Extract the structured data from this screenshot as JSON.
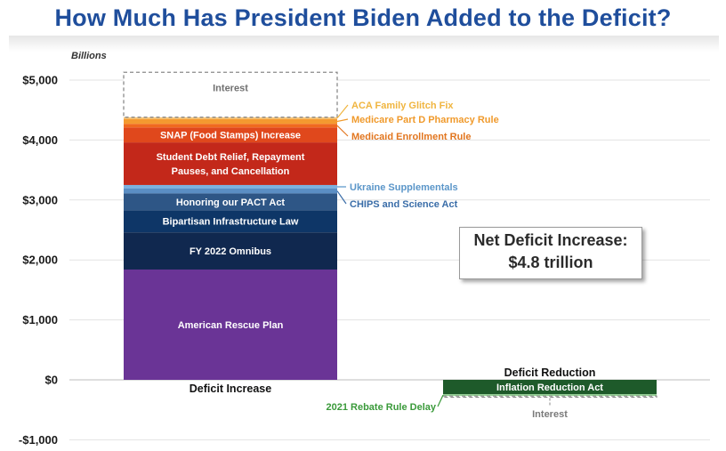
{
  "title": "How Much Has President Biden Added to the Deficit?",
  "callout": {
    "line1": "Net Deficit Increase:",
    "line2": "$4.8 trillion"
  },
  "chart_data": {
    "type": "bar",
    "stacked": true,
    "title": "How Much Has President Biden Added to the Deficit?",
    "ylabel": "Billions",
    "ylim": [
      -1000,
      5000
    ],
    "yticks": [
      -1000,
      0,
      1000,
      2000,
      3000,
      4000,
      5000
    ],
    "ytick_labels": [
      "-$1,000",
      "$0",
      "$1,000",
      "$2,000",
      "$3,000",
      "$4,000",
      "$5,000"
    ],
    "grid": true,
    "categories": [
      "Deficit Increase",
      "Deficit Reduction"
    ],
    "increase": [
      {
        "name": "American Rescue Plan",
        "value": 1840,
        "color": "#6a3496",
        "label_inside": true
      },
      {
        "name": "FY 2022 Omnibus",
        "value": 620,
        "color": "#10284f",
        "label_inside": true
      },
      {
        "name": "Bipartisan Infrastructure Law",
        "value": 370,
        "color": "#0e3667",
        "label_inside": true
      },
      {
        "name": "Honoring our PACT Act",
        "value": 280,
        "color": "#2e5686",
        "label_inside": true
      },
      {
        "name": "CHIPS and Science Act",
        "value": 80,
        "color": "#5b8ec4",
        "label_inside": false,
        "label_color": "#3a6da8"
      },
      {
        "name": "Ukraine Supplementals",
        "value": 60,
        "color": "#7db0de",
        "label_inside": false,
        "label_color": "#5b96c9"
      },
      {
        "name": "Student Debt Relief, Repayment Pauses, and Cancellation",
        "value": 710,
        "color": "#c3281a",
        "label_inside": true
      },
      {
        "name": "SNAP (Food Stamps) Increase",
        "value": 250,
        "color": "#e0481c",
        "label_inside": true
      },
      {
        "name": "Medicaid Enrollment Rule",
        "value": 60,
        "color": "#f06a1f",
        "label_inside": false,
        "label_color": "#e2761f"
      },
      {
        "name": "Medicare Part D Pharmacy Rule",
        "value": 80,
        "color": "#f49a30",
        "label_inside": false,
        "label_color": "#f09a2c"
      },
      {
        "name": "ACA Family Glitch Fix",
        "value": 30,
        "color": "#f8c06a",
        "label_inside": false,
        "label_color": "#f0b540"
      },
      {
        "name": "Interest",
        "value": 750,
        "style": "dashed-outline",
        "label_inside": true
      }
    ],
    "reduction": [
      {
        "name": "Inflation Reduction Act",
        "value": -240,
        "color": "#1e5a2a",
        "label_inside": true
      },
      {
        "name": "2021 Rebate Rule Delay",
        "value": -30,
        "color": "#8fcf8f",
        "label_inside": false,
        "label_color": "#3a9a3a"
      },
      {
        "name": "Interest",
        "value": -20,
        "style": "dashed-outline",
        "label_inside": false,
        "label_color": "#7a7a7a"
      }
    ]
  }
}
